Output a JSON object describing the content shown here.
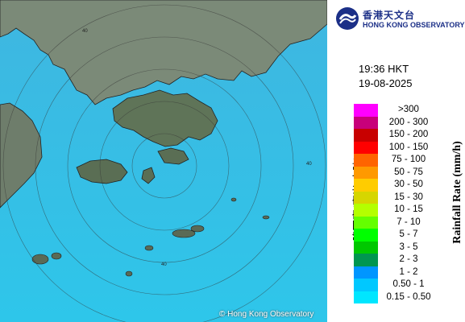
{
  "header": {
    "org_name_zh": "香港天文台",
    "org_name_en": "HONG KONG OBSERVATORY"
  },
  "timestamp": {
    "time": "19:36 HKT",
    "date": "19-08-2025"
  },
  "legend": {
    "unit_zh": "降雨率(毫米/小時)",
    "unit_en": "Rainfall Rate (mm/h)",
    "items": [
      {
        "label": ">300",
        "color": "#ff00ff"
      },
      {
        "label": "200 - 300",
        "color": "#c8007a"
      },
      {
        "label": "150 - 200",
        "color": "#c80000"
      },
      {
        "label": "100 - 150",
        "color": "#ff0000"
      },
      {
        "label": "75 - 100",
        "color": "#ff6400"
      },
      {
        "label": "50 - 75",
        "color": "#ff9900"
      },
      {
        "label": "30 - 50",
        "color": "#ffcc00"
      },
      {
        "label": "15 - 30",
        "color": "#d6d600"
      },
      {
        "label": "10 - 15",
        "color": "#b4ff00"
      },
      {
        "label": "7 - 10",
        "color": "#64ff00"
      },
      {
        "label": "5 - 7",
        "color": "#00ff00"
      },
      {
        "label": "3 - 5",
        "color": "#00c800"
      },
      {
        "label": "2 - 3",
        "color": "#009650"
      },
      {
        "label": "1 - 2",
        "color": "#0096ff"
      },
      {
        "label": "0.50 - 1",
        "color": "#00c8ff"
      },
      {
        "label": "0.15 - 0.50",
        "color": "#00e6ff"
      }
    ]
  },
  "map": {
    "range_ring_label": "40",
    "copyright": "© Hong Kong Observatory",
    "sea_color": "#34c2e8",
    "land_color": "#6f7f6a"
  }
}
